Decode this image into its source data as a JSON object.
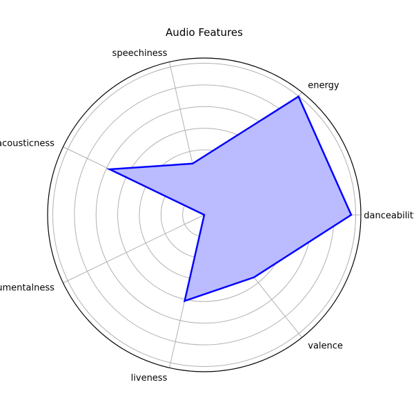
{
  "chart_data": {
    "type": "radar",
    "title": "Audio Features",
    "categories": [
      "danceability",
      "energy",
      "speechiness",
      "acousticness",
      "instrumentalness",
      "liveness",
      "valence"
    ],
    "series": [
      {
        "values": [
          0.7,
          0.72,
          0.25,
          0.5,
          0.0,
          0.42,
          0.38
        ],
        "line_color": "#0000ff",
        "fill_color": "#bbbbff"
      }
    ],
    "rlim": [
      0,
      0.7
    ],
    "grid": true,
    "grid_rings": 7
  }
}
